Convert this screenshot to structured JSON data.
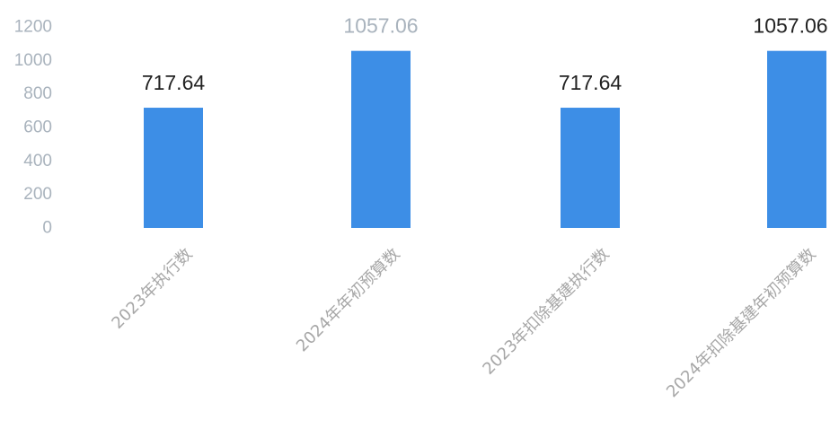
{
  "chart_data": {
    "type": "bar",
    "title": "",
    "xlabel": "",
    "ylabel": "",
    "ylim": [
      0,
      1200
    ],
    "yticks": [
      0,
      200,
      400,
      600,
      800,
      1000,
      1200
    ],
    "grid": false,
    "categories": [
      "2023年执行数",
      "2024年年初预算数",
      "2023年扣除基建执行数",
      "2024年扣除基建年初预算数"
    ],
    "values": [
      717.64,
      1057.06,
      717.64,
      1057.06
    ],
    "data_labels": [
      "717.64",
      "1057.06",
      "717.64",
      "1057.06"
    ],
    "colors": {
      "bar": "#3d8ee6",
      "tick": "#a9b3bd",
      "label": "#222222",
      "label_faint": "#a9b3bd"
    }
  }
}
